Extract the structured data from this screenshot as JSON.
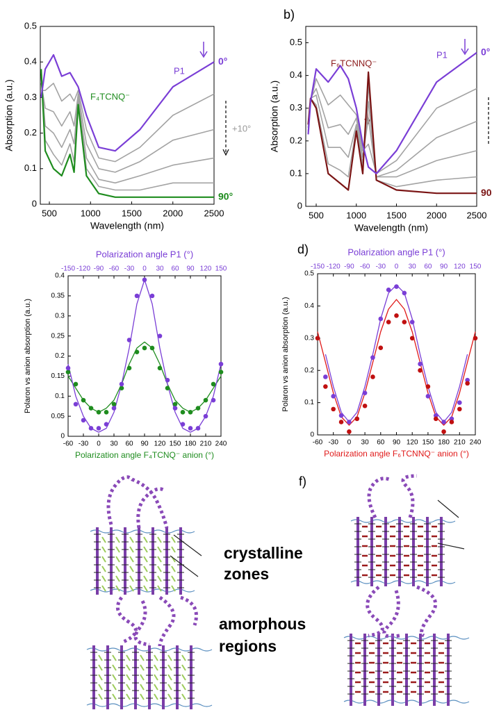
{
  "chart_data": [
    {
      "type": "line",
      "xlabel": "Wavelength (nm)",
      "ylabel": "Absorption (a.u.)",
      "x": [
        400,
        450,
        550,
        650,
        750,
        800,
        850,
        950,
        1100,
        1300,
        1600,
        2000,
        2500
      ],
      "xlim": [
        390,
        2500
      ],
      "ylim": [
        0,
        0.5
      ],
      "xticks": [
        500,
        1000,
        1500,
        2000,
        2500
      ],
      "yticks": [
        0,
        0.1,
        0.2,
        0.3,
        0.4,
        0.5
      ],
      "series": [
        {
          "color": "#a3a3a3",
          "values": [
            0.32,
            0.32,
            0.34,
            0.29,
            0.31,
            0.29,
            0.32,
            0.21,
            0.13,
            0.12,
            0.16,
            0.25,
            0.31
          ]
        },
        {
          "color": "#a3a3a3",
          "values": [
            0.34,
            0.27,
            0.26,
            0.22,
            0.26,
            0.22,
            0.31,
            0.17,
            0.1,
            0.09,
            0.12,
            0.18,
            0.21
          ]
        },
        {
          "color": "#a3a3a3",
          "values": [
            0.36,
            0.22,
            0.2,
            0.16,
            0.21,
            0.17,
            0.3,
            0.13,
            0.07,
            0.06,
            0.08,
            0.11,
            0.13
          ]
        },
        {
          "color": "#a3a3a3",
          "values": [
            0.37,
            0.18,
            0.14,
            0.11,
            0.17,
            0.12,
            0.29,
            0.1,
            0.05,
            0.04,
            0.04,
            0.06,
            0.06
          ]
        },
        {
          "name": "90°",
          "color": "#1e8c1e",
          "values": [
            0.38,
            0.15,
            0.1,
            0.08,
            0.14,
            0.09,
            0.28,
            0.08,
            0.03,
            0.02,
            0.02,
            0.02,
            0.02
          ]
        },
        {
          "name": "0°",
          "color": "#7a3ed6",
          "values": [
            0.3,
            0.38,
            0.42,
            0.36,
            0.37,
            0.35,
            0.33,
            0.25,
            0.16,
            0.15,
            0.21,
            0.33,
            0.4
          ]
        }
      ],
      "annotations": [
        {
          "text": "P1",
          "color": "#7a3ed6"
        },
        {
          "text": "F₄TCNQ⁻",
          "color": "#1e8c1e"
        },
        {
          "text": "+10°",
          "color": "#999999"
        }
      ]
    },
    {
      "type": "line",
      "panel_label": "b)",
      "xlabel": "Wavelength (nm)",
      "ylabel": "Absorption (a.u.)",
      "x": [
        400,
        430,
        500,
        650,
        800,
        900,
        1000,
        1080,
        1150,
        1250,
        1500,
        2000,
        2500
      ],
      "xlim": [
        370,
        2500
      ],
      "ylim": [
        0,
        0.55
      ],
      "xticks": [
        500,
        1000,
        1500,
        2000,
        2500
      ],
      "yticks": [
        0,
        0.1,
        0.2,
        0.3,
        0.4,
        0.5
      ],
      "series": [
        {
          "color": "#a3a3a3",
          "values": [
            0.23,
            0.32,
            0.39,
            0.31,
            0.34,
            0.31,
            0.28,
            0.17,
            0.19,
            0.1,
            0.14,
            0.3,
            0.36
          ]
        },
        {
          "color": "#a3a3a3",
          "values": [
            0.24,
            0.33,
            0.36,
            0.24,
            0.25,
            0.22,
            0.27,
            0.15,
            0.27,
            0.09,
            0.11,
            0.21,
            0.26
          ]
        },
        {
          "color": "#a3a3a3",
          "values": [
            0.24,
            0.33,
            0.34,
            0.18,
            0.18,
            0.15,
            0.25,
            0.13,
            0.32,
            0.09,
            0.09,
            0.14,
            0.17
          ]
        },
        {
          "color": "#a3a3a3",
          "values": [
            0.25,
            0.33,
            0.31,
            0.13,
            0.11,
            0.09,
            0.24,
            0.11,
            0.37,
            0.08,
            0.06,
            0.08,
            0.09
          ]
        },
        {
          "name": "90",
          "color": "#7a1414",
          "values": [
            0.25,
            0.33,
            0.3,
            0.1,
            0.07,
            0.05,
            0.23,
            0.1,
            0.41,
            0.08,
            0.05,
            0.04,
            0.04
          ]
        },
        {
          "name": "0°",
          "color": "#7a3ed6",
          "values": [
            0.22,
            0.32,
            0.42,
            0.38,
            0.43,
            0.39,
            0.3,
            0.19,
            0.12,
            0.1,
            0.17,
            0.38,
            0.47
          ]
        }
      ],
      "annotations": [
        {
          "text": "P1",
          "color": "#7a3ed6"
        },
        {
          "text": "F₆TCNNQ⁻",
          "color": "#8b1a1a"
        }
      ]
    },
    {
      "type": "scatter",
      "ylabel": "Polaron vs anion absorption (a.u.)",
      "xlabel": "Polarization angle F₄TCNQ⁻ anion (°)",
      "xlabel_color": "#1e8c1e",
      "x2label": "Polarization angle P1 (°)",
      "x2label_color": "#7a3ed6",
      "x": [
        -60,
        -45,
        -30,
        -15,
        0,
        15,
        30,
        45,
        60,
        75,
        90,
        105,
        120,
        135,
        150,
        165,
        180,
        195,
        210,
        225,
        240
      ],
      "xlim": [
        -60,
        240
      ],
      "xticks": [
        -60,
        -30,
        0,
        30,
        60,
        90,
        120,
        150,
        180,
        210,
        240
      ],
      "x2lim": [
        -150,
        150
      ],
      "x2ticks": [
        -150,
        -120,
        -90,
        -60,
        -30,
        0,
        30,
        60,
        90,
        120,
        150
      ],
      "ylim": [
        0,
        0.4
      ],
      "yticks": [
        0,
        0.05,
        0.1,
        0.15,
        0.2,
        0.25,
        0.3,
        0.35,
        0.4
      ],
      "series": [
        {
          "style": "line",
          "color": "#1e8c1e",
          "values": [
            0.15,
            0.12,
            0.09,
            0.07,
            0.06,
            0.07,
            0.09,
            0.13,
            0.18,
            0.22,
            0.235,
            0.22,
            0.18,
            0.13,
            0.09,
            0.07,
            0.06,
            0.07,
            0.09,
            0.12,
            0.15
          ]
        },
        {
          "style": "line",
          "color": "#7a3ed6",
          "values": [
            0.18,
            0.1,
            0.05,
            0.02,
            0.01,
            0.02,
            0.06,
            0.13,
            0.22,
            0.33,
            0.39,
            0.33,
            0.22,
            0.13,
            0.06,
            0.02,
            0.01,
            0.02,
            0.05,
            0.1,
            0.18
          ]
        },
        {
          "style": "markers",
          "color": "#1e8c1e",
          "values": [
            0.16,
            0.13,
            0.09,
            0.07,
            0.06,
            0.06,
            0.08,
            0.12,
            0.17,
            0.21,
            0.22,
            0.22,
            0.17,
            0.12,
            0.08,
            0.06,
            0.06,
            0.07,
            0.09,
            0.13,
            0.16
          ]
        },
        {
          "style": "markers",
          "color": "#7a3ed6",
          "values": [
            0.17,
            0.08,
            0.04,
            0.02,
            0.02,
            0.03,
            0.07,
            0.13,
            0.24,
            0.35,
            0.39,
            0.35,
            0.25,
            0.14,
            0.07,
            0.03,
            0.02,
            0.02,
            0.05,
            0.09,
            0.18
          ]
        }
      ]
    },
    {
      "type": "scatter",
      "panel_label": "d)",
      "ylabel": "Polaron vs anion absorption (a.u.)",
      "xlabel": "Polarization angle F₆TCNNQ⁻ anion (°)",
      "xlabel_color": "#e01818",
      "x2label": "Polarization angle P1 (°)",
      "x2label_color": "#7a3ed6",
      "x": [
        -60,
        -45,
        -30,
        -15,
        0,
        15,
        30,
        45,
        60,
        75,
        90,
        105,
        120,
        135,
        150,
        165,
        180,
        195,
        210,
        225,
        240
      ],
      "xlim": [
        -60,
        240
      ],
      "xticks": [
        -60,
        -30,
        0,
        30,
        60,
        90,
        120,
        150,
        180,
        210,
        240
      ],
      "x2lim": [
        -150,
        150
      ],
      "x2ticks": [
        -150,
        -120,
        -90,
        -60,
        -30,
        0,
        30,
        60,
        90,
        120,
        150
      ],
      "ylim": [
        0,
        0.5
      ],
      "yticks": [
        0,
        0.1,
        0.2,
        0.3,
        0.4,
        0.5
      ],
      "series": [
        {
          "style": "line",
          "color": "#7a3ed6",
          "values": [
            null,
            0.25,
            0.15,
            0.07,
            0.04,
            0.07,
            0.15,
            0.25,
            0.36,
            0.44,
            0.465,
            0.44,
            0.36,
            0.25,
            0.15,
            0.07,
            0.04,
            0.07,
            0.15,
            0.25,
            null
          ]
        },
        {
          "style": "line",
          "color": "#e01818",
          "values": [
            0.32,
            0.225,
            0.13,
            0.056,
            0.03,
            0.056,
            0.13,
            0.225,
            0.32,
            0.39,
            0.42,
            0.39,
            0.32,
            0.225,
            0.13,
            0.056,
            0.03,
            0.056,
            0.13,
            0.225,
            0.32
          ]
        },
        {
          "style": "markers",
          "color": "#7a3ed6",
          "values": [
            null,
            0.18,
            0.12,
            0.06,
            0.04,
            0.05,
            0.13,
            0.24,
            0.36,
            0.45,
            0.46,
            0.44,
            0.35,
            0.22,
            0.12,
            0.06,
            0.04,
            0.05,
            0.1,
            0.17,
            null
          ]
        },
        {
          "style": "markers",
          "color": "#c01010",
          "values": [
            0.3,
            0.15,
            0.08,
            0.04,
            0.01,
            0.05,
            0.09,
            0.18,
            0.27,
            0.35,
            0.37,
            0.35,
            0.3,
            0.2,
            0.15,
            0.05,
            0.01,
            0.04,
            0.08,
            0.16,
            0.3
          ]
        }
      ]
    }
  ],
  "schematic": {
    "panel_label": "f)",
    "labels": [
      "crystalline",
      "zones",
      "amorphous",
      "regions"
    ]
  }
}
